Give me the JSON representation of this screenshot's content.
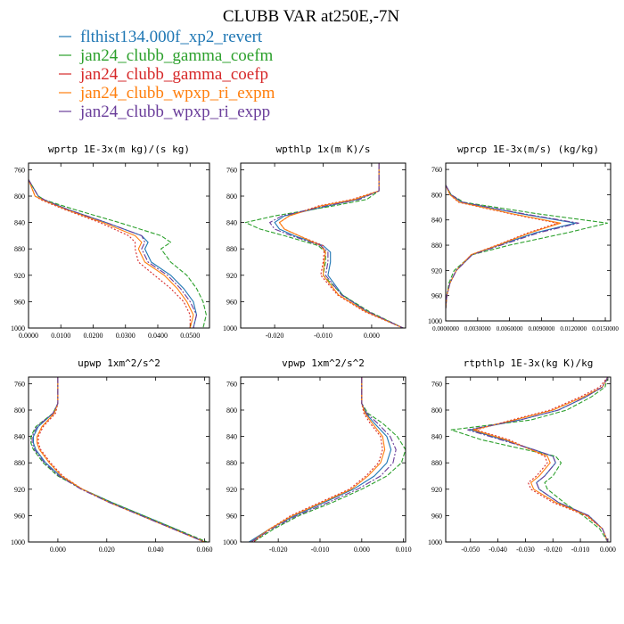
{
  "title": "CLUBB VAR at250E,-7N",
  "colors": [
    "#1f77b4",
    "#2ca02c",
    "#d62728",
    "#ff7f0e",
    "#6a3d9a"
  ],
  "legend": [
    {
      "label": "flthist134.000f_xp2_revert",
      "color": "#1f77b4"
    },
    {
      "label": "jan24_clubb_gamma_coefm",
      "color": "#2ca02c"
    },
    {
      "label": "jan24_clubb_gamma_coefp",
      "color": "#d62728"
    },
    {
      "label": "jan24_clubb_wpxp_ri_expm",
      "color": "#ff7f0e"
    },
    {
      "label": "jan24_clubb_wpxp_ri_expp",
      "color": "#6a3d9a"
    }
  ],
  "chart_data": [
    {
      "type": "line",
      "title": "wprtp  1E-3x(m kg)/(s kg)",
      "xlim": [
        0,
        0.056
      ],
      "ylim": [
        750,
        1000
      ],
      "xticks": [
        0,
        0.01,
        0.02,
        0.03,
        0.04,
        0.05
      ],
      "xtick_labels": [
        "0.0000",
        "0.0100",
        "0.0200",
        "0.0300",
        "0.0400",
        "0.0500"
      ],
      "yticks": [
        760,
        800,
        840,
        880,
        920,
        960,
        1000
      ],
      "y": [
        775,
        800,
        806,
        820,
        840,
        860,
        870,
        880,
        900,
        920,
        940,
        960,
        980,
        1000
      ],
      "series": [
        {
          "values": [
            0,
            0.003,
            0.005,
            0.012,
            0.024,
            0.035,
            0.037,
            0.036,
            0.038,
            0.044,
            0.048,
            0.051,
            0.052,
            0.051
          ]
        },
        {
          "values": [
            0,
            0.003,
            0.005,
            0.014,
            0.028,
            0.041,
            0.044,
            0.041,
            0.044,
            0.049,
            0.052,
            0.054,
            0.055,
            0.054
          ]
        },
        {
          "values": [
            0,
            0.002,
            0.004,
            0.011,
            0.022,
            0.031,
            0.033,
            0.033,
            0.034,
            0.039,
            0.044,
            0.048,
            0.05,
            0.05
          ]
        },
        {
          "values": [
            0,
            0.002,
            0.0045,
            0.0115,
            0.023,
            0.033,
            0.035,
            0.034,
            0.036,
            0.042,
            0.046,
            0.049,
            0.051,
            0.05
          ]
        },
        {
          "values": [
            0,
            0.003,
            0.005,
            0.012,
            0.024,
            0.035,
            0.036,
            0.035,
            0.037,
            0.043,
            0.047,
            0.05,
            0.052,
            0.051
          ]
        }
      ]
    },
    {
      "type": "line",
      "title": "wpthlp  1x(m K)/s",
      "xlim": [
        -0.027,
        0.007
      ],
      "ylim": [
        750,
        1000
      ],
      "xticks": [
        -0.02,
        -0.01,
        0
      ],
      "xtick_labels": [
        "-0.020",
        "-0.010",
        "0.000"
      ],
      "yticks": [
        760,
        800,
        840,
        880,
        920,
        960,
        1000
      ],
      "y": [
        750,
        780,
        792,
        805,
        815,
        830,
        840,
        850,
        860,
        875,
        885,
        900,
        920,
        950,
        975,
        1000
      ],
      "series": [
        {
          "values": [
            0.0015,
            0.0015,
            0.0015,
            -0.003,
            -0.009,
            -0.018,
            -0.02,
            -0.019,
            -0.016,
            -0.01,
            -0.0085,
            -0.0085,
            -0.009,
            -0.006,
            -0.001,
            0.0065
          ]
        },
        {
          "values": [
            0.0015,
            0.0015,
            0.0015,
            -0.001,
            -0.008,
            -0.02,
            -0.026,
            -0.023,
            -0.018,
            -0.011,
            -0.0095,
            -0.0095,
            -0.01,
            -0.006,
            -0.0005,
            0.0065
          ]
        },
        {
          "values": [
            0.0015,
            0.0015,
            0.0015,
            -0.004,
            -0.011,
            -0.017,
            -0.019,
            -0.018,
            -0.015,
            -0.01,
            -0.0098,
            -0.01,
            -0.0105,
            -0.007,
            -0.0015,
            0.0065
          ]
        },
        {
          "values": [
            0.0015,
            0.0015,
            0.0015,
            -0.0035,
            -0.0105,
            -0.017,
            -0.019,
            -0.018,
            -0.015,
            -0.0105,
            -0.0095,
            -0.0098,
            -0.01,
            -0.0068,
            -0.0012,
            0.0065
          ]
        },
        {
          "values": [
            0.0015,
            0.0015,
            0.0015,
            -0.0025,
            -0.0095,
            -0.0185,
            -0.021,
            -0.02,
            -0.0165,
            -0.0105,
            -0.009,
            -0.009,
            -0.0095,
            -0.0062,
            -0.0008,
            0.0065
          ]
        }
      ]
    },
    {
      "type": "line",
      "title": "wprcp  1E-3x(m/s) (kg/kg)",
      "xlim": [
        0,
        0.0155
      ],
      "ylim": [
        750,
        1000
      ],
      "xticks": [
        0,
        0.003,
        0.006,
        0.009,
        0.012,
        0.015
      ],
      "xtick_labels": [
        "0.0000000",
        "0.0030000",
        "0.0060000",
        "0.0090000",
        "0.0120000",
        "0.0150000"
      ],
      "yticks": [
        760,
        800,
        840,
        880,
        920,
        960,
        1000
      ],
      "y": [
        785,
        800,
        812,
        830,
        845,
        860,
        880,
        895,
        920,
        940,
        960,
        980
      ],
      "series": [
        {
          "values": [
            0,
            0.0005,
            0.0015,
            0.007,
            0.0122,
            0.0085,
            0.005,
            0.0025,
            0.001,
            0.0004,
            0.0001,
            0
          ]
        },
        {
          "values": [
            0,
            0.0005,
            0.0017,
            0.0085,
            0.0152,
            0.0115,
            0.006,
            0.0025,
            0.0008,
            0.0003,
            0.0001,
            0
          ]
        },
        {
          "values": [
            0,
            0.0004,
            0.0012,
            0.006,
            0.0105,
            0.0078,
            0.0048,
            0.0024,
            0.001,
            0.0004,
            0.0001,
            0
          ]
        },
        {
          "values": [
            0,
            0.0004,
            0.0013,
            0.0062,
            0.0108,
            0.008,
            0.0049,
            0.0024,
            0.001,
            0.0004,
            0.0001,
            0
          ]
        },
        {
          "values": [
            0,
            0.0005,
            0.0016,
            0.0072,
            0.0125,
            0.0088,
            0.0052,
            0.0025,
            0.001,
            0.0004,
            0.0001,
            0
          ]
        }
      ]
    },
    {
      "type": "line",
      "title": "upwp  1xm^2/s^2",
      "xlim": [
        -0.012,
        0.062
      ],
      "ylim": [
        750,
        1000
      ],
      "xticks": [
        0,
        0.02,
        0.04,
        0.06
      ],
      "xtick_labels": [
        "0.000",
        "0.020",
        "0.040",
        "0.060"
      ],
      "yticks": [
        760,
        800,
        840,
        880,
        920,
        960,
        1000
      ],
      "y": [
        750,
        790,
        805,
        825,
        840,
        850,
        860,
        880,
        900,
        920,
        940,
        960,
        980,
        1000
      ],
      "series": [
        {
          "values": [
            0,
            0,
            -0.002,
            -0.008,
            -0.01,
            -0.01,
            -0.009,
            -0.005,
            0.001,
            0.01,
            0.022,
            0.035,
            0.048,
            0.06
          ]
        },
        {
          "values": [
            0,
            0,
            -0.002,
            -0.009,
            -0.011,
            -0.011,
            -0.01,
            -0.006,
            0.0,
            0.01,
            0.022,
            0.035,
            0.048,
            0.061
          ]
        },
        {
          "values": [
            0,
            0,
            -0.001,
            -0.006,
            -0.008,
            -0.008,
            -0.007,
            -0.003,
            0.002,
            0.01,
            0.021,
            0.034,
            0.047,
            0.06
          ]
        },
        {
          "values": [
            0,
            0,
            -0.0015,
            -0.0065,
            -0.0085,
            -0.0085,
            -0.0075,
            -0.0035,
            0.0015,
            0.01,
            0.021,
            0.034,
            0.047,
            0.06
          ]
        },
        {
          "values": [
            0,
            0,
            -0.002,
            -0.0085,
            -0.0105,
            -0.0105,
            -0.0095,
            -0.0055,
            0.0005,
            0.0095,
            0.021,
            0.034,
            0.047,
            0.06
          ]
        }
      ]
    },
    {
      "type": "line",
      "title": "vpwp  1xm^2/s^2",
      "xlim": [
        -0.029,
        0.0105
      ],
      "ylim": [
        750,
        1000
      ],
      "xticks": [
        -0.02,
        -0.01,
        0,
        0.01
      ],
      "xtick_labels": [
        "-0.020",
        "-0.010",
        "0.000",
        "0.010"
      ],
      "yticks": [
        760,
        800,
        840,
        880,
        920,
        960,
        1000
      ],
      "y": [
        750,
        790,
        805,
        820,
        840,
        860,
        880,
        900,
        920,
        940,
        960,
        980,
        1000
      ],
      "series": [
        {
          "values": [
            0,
            0,
            0.001,
            0.003,
            0.006,
            0.007,
            0.006,
            0.003,
            -0.002,
            -0.009,
            -0.016,
            -0.022,
            -0.027
          ]
        },
        {
          "values": [
            0,
            0,
            0.0015,
            0.005,
            0.0085,
            0.0105,
            0.0095,
            0.006,
            0.0,
            -0.007,
            -0.015,
            -0.021,
            -0.026
          ]
        },
        {
          "values": [
            0,
            0,
            0.0005,
            0.002,
            0.0045,
            0.005,
            0.004,
            0.001,
            -0.003,
            -0.01,
            -0.017,
            -0.022,
            -0.026
          ]
        },
        {
          "values": [
            0,
            0,
            0.0008,
            0.0025,
            0.005,
            0.0055,
            0.0045,
            0.0015,
            -0.0025,
            -0.0095,
            -0.0165,
            -0.022,
            -0.0265
          ]
        },
        {
          "values": [
            0,
            0,
            0.0012,
            0.0038,
            0.0068,
            0.0082,
            0.0075,
            0.0045,
            -0.001,
            -0.008,
            -0.0155,
            -0.0215,
            -0.0265
          ]
        }
      ]
    },
    {
      "type": "line",
      "title": "rtpthlp  1E-3x(kg K)/kg",
      "xlim": [
        -0.059,
        0.001
      ],
      "ylim": [
        750,
        1000
      ],
      "xticks": [
        -0.05,
        -0.04,
        -0.03,
        -0.02,
        -0.01,
        0
      ],
      "xtick_labels": [
        "-0.050",
        "-0.040",
        "-0.030",
        "-0.020",
        "-0.010",
        "0.000"
      ],
      "yticks": [
        760,
        800,
        840,
        880,
        920,
        960,
        1000
      ],
      "y": [
        750,
        765,
        780,
        800,
        815,
        830,
        845,
        860,
        870,
        880,
        900,
        910,
        920,
        940,
        960,
        980,
        1000
      ],
      "series": [
        {
          "values": [
            0,
            -0.002,
            -0.008,
            -0.018,
            -0.032,
            -0.05,
            -0.038,
            -0.027,
            -0.02,
            -0.019,
            -0.023,
            -0.026,
            -0.025,
            -0.018,
            -0.007,
            -0.002,
            0
          ]
        },
        {
          "values": [
            0,
            -0.001,
            -0.006,
            -0.015,
            -0.028,
            -0.057,
            -0.046,
            -0.03,
            -0.019,
            -0.017,
            -0.02,
            -0.023,
            -0.022,
            -0.016,
            -0.009,
            -0.003,
            0
          ]
        },
        {
          "values": [
            0,
            -0.003,
            -0.01,
            -0.021,
            -0.035,
            -0.048,
            -0.036,
            -0.028,
            -0.023,
            -0.022,
            -0.026,
            -0.029,
            -0.028,
            -0.02,
            -0.008,
            -0.002,
            0
          ]
        },
        {
          "values": [
            0,
            -0.002,
            -0.009,
            -0.02,
            -0.034,
            -0.049,
            -0.037,
            -0.028,
            -0.022,
            -0.021,
            -0.025,
            -0.028,
            -0.027,
            -0.019,
            -0.0075,
            -0.002,
            0
          ]
        },
        {
          "values": [
            0,
            -0.002,
            -0.008,
            -0.018,
            -0.032,
            -0.051,
            -0.039,
            -0.027,
            -0.02,
            -0.019,
            -0.023,
            -0.026,
            -0.025,
            -0.018,
            -0.007,
            -0.002,
            0
          ]
        }
      ]
    }
  ]
}
